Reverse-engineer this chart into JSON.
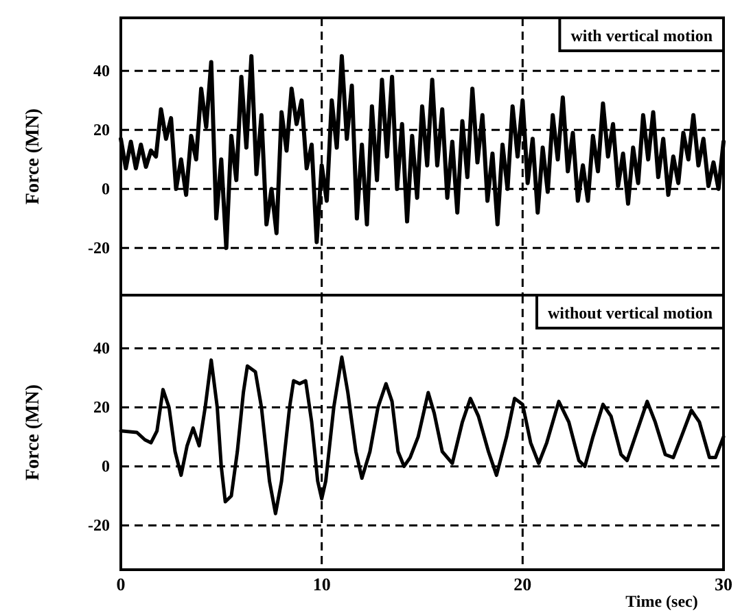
{
  "chart_data": [
    {
      "type": "line",
      "ylabel": "Force (MN)",
      "annotations": [
        "with vertical motion"
      ],
      "xlim": [
        0,
        30
      ],
      "xticks": [
        0,
        10,
        20,
        30
      ],
      "ylim": [
        -36,
        58
      ],
      "yticks": [
        -20,
        0,
        20,
        40
      ],
      "grid": true,
      "tick_labels": "y",
      "x": [
        0,
        0.25,
        0.5,
        0.75,
        1,
        1.25,
        1.5,
        1.75,
        2,
        2.25,
        2.5,
        2.75,
        3,
        3.25,
        3.5,
        3.75,
        4,
        4.25,
        4.5,
        4.75,
        5,
        5.25,
        5.5,
        5.75,
        6,
        6.25,
        6.5,
        6.75,
        7,
        7.25,
        7.5,
        7.75,
        8,
        8.25,
        8.5,
        8.75,
        9,
        9.25,
        9.5,
        9.75,
        10,
        10.25,
        10.5,
        10.75,
        11,
        11.25,
        11.5,
        11.75,
        12,
        12.25,
        12.5,
        12.75,
        13,
        13.25,
        13.5,
        13.75,
        14,
        14.25,
        14.5,
        14.75,
        15,
        15.25,
        15.5,
        15.75,
        16,
        16.25,
        16.5,
        16.75,
        17,
        17.25,
        17.5,
        17.75,
        18,
        18.25,
        18.5,
        18.75,
        19,
        19.25,
        19.5,
        19.75,
        20,
        20.25,
        20.5,
        20.75,
        21,
        21.25,
        21.5,
        21.75,
        22,
        22.25,
        22.5,
        22.75,
        23,
        23.25,
        23.5,
        23.75,
        24,
        24.25,
        24.5,
        24.75,
        25,
        25.25,
        25.5,
        25.75,
        26,
        26.25,
        26.5,
        26.75,
        27,
        27.25,
        27.5,
        27.75,
        28,
        28.25,
        28.5,
        28.75,
        29,
        29.25,
        29.5,
        29.75,
        30
      ],
      "series": [
        {
          "color": "#000000",
          "values": [
            17,
            7,
            16,
            7,
            15,
            7.5,
            13,
            11,
            27,
            17,
            24,
            0,
            10,
            -2,
            18,
            10,
            34,
            21,
            43,
            -10,
            10,
            -20,
            18,
            3,
            38,
            14,
            45,
            5,
            25,
            -12,
            0,
            -15,
            26,
            13,
            34,
            22,
            30,
            7,
            15,
            -18,
            8,
            -4,
            30,
            14,
            45,
            17,
            35,
            -10,
            15,
            -12,
            28,
            3,
            37,
            11,
            38,
            0,
            22,
            -11,
            18,
            -3,
            28,
            8,
            37,
            8,
            27,
            -3,
            16,
            -8,
            23,
            4,
            34,
            9,
            25,
            -4,
            12,
            -12,
            15,
            0,
            28,
            11,
            30,
            2,
            17,
            -8,
            14,
            -1,
            25,
            10,
            31,
            6,
            19,
            -4,
            8,
            -4,
            18,
            6,
            29,
            11,
            22,
            1,
            12,
            -5,
            14,
            2,
            25,
            10,
            26,
            4,
            17,
            -2,
            11,
            2,
            19,
            10,
            25,
            8,
            17,
            1,
            9,
            0,
            16
          ]
        }
      ]
    },
    {
      "type": "line",
      "ylabel": "Force (MN)",
      "xlabel": "Time (sec)",
      "annotations": [
        "without vertical motion"
      ],
      "xlim": [
        0,
        30
      ],
      "xticks": [
        0,
        10,
        20,
        30
      ],
      "ylim": [
        -35,
        58
      ],
      "yticks": [
        -20,
        0,
        20,
        40
      ],
      "grid": true,
      "x": [
        0,
        0.8,
        1.2,
        1.5,
        1.8,
        2.1,
        2.4,
        2.7,
        3,
        3.3,
        3.6,
        3.9,
        4.2,
        4.5,
        4.8,
        5,
        5.2,
        5.5,
        5.8,
        6.1,
        6.3,
        6.7,
        7,
        7.4,
        7.7,
        8,
        8.4,
        8.6,
        8.9,
        9.2,
        9.5,
        9.8,
        10,
        10.2,
        10.6,
        11,
        11.3,
        11.7,
        12,
        12.4,
        12.8,
        13.2,
        13.5,
        13.8,
        14.1,
        14.4,
        14.8,
        15.3,
        15.6,
        16,
        16.5,
        17,
        17.4,
        17.8,
        18.3,
        18.7,
        19.2,
        19.6,
        20,
        20.4,
        20.8,
        21.2,
        21.8,
        22.3,
        22.8,
        23.1,
        23.5,
        24,
        24.4,
        24.9,
        25.2,
        25.6,
        26.2,
        26.6,
        27.1,
        27.5,
        27.9,
        28.4,
        28.8,
        29.3,
        29.6,
        30
      ],
      "series": [
        {
          "color": "#000000",
          "values": [
            12,
            11.5,
            9,
            8,
            12,
            26,
            20,
            5,
            -3,
            7,
            13,
            7,
            20,
            36,
            20,
            0,
            -12,
            -10,
            5,
            25,
            34,
            32,
            20,
            -5,
            -16,
            -5,
            20,
            29,
            28,
            29,
            15,
            -5,
            -11,
            -5,
            20,
            37,
            25,
            5,
            -4,
            5,
            20,
            28,
            22,
            5,
            0,
            3,
            10,
            25,
            18,
            5,
            1,
            15,
            23,
            17,
            5,
            -3,
            10,
            23,
            21,
            8,
            1,
            8,
            22,
            15,
            2,
            0,
            10,
            21,
            17,
            4,
            2,
            10,
            22,
            15,
            4,
            3,
            10,
            19,
            15,
            3,
            3,
            10
          ]
        }
      ]
    }
  ]
}
